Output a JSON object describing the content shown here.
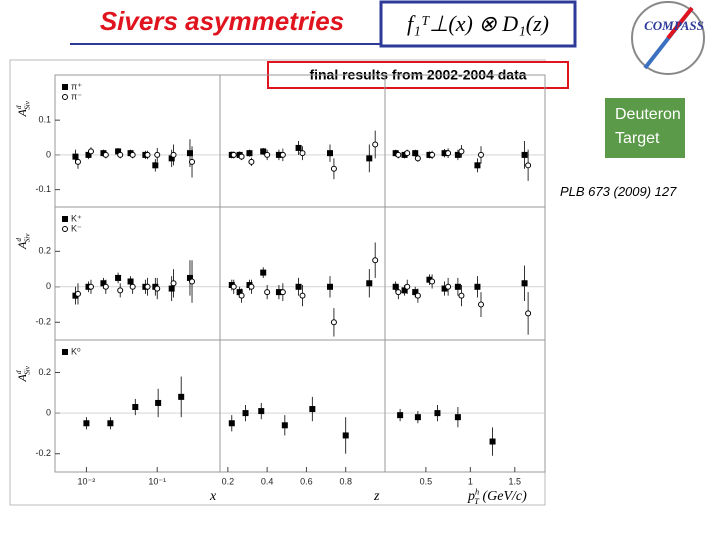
{
  "slide": {
    "title": "Sivers asymmetries",
    "formula": "f₁ᵀ⊥(x) ⊗ D₁(z)",
    "logo": "COMPASS",
    "subtitle": "final results from 2002-2004 data",
    "target": [
      "Deuteron",
      "Target"
    ],
    "reference": "PLB 673 (2009) 127"
  },
  "chart_data": [
    {
      "type": "scatter",
      "xlog": true,
      "xlim": [
        0.0036,
        0.77
      ],
      "ylim": [
        -0.15,
        0.23
      ],
      "yticks": [
        -0.1,
        0,
        0.1
      ],
      "ylabel": {
        "main": "A",
        "sup": "d",
        "sub": "Siv"
      },
      "series": [
        {
          "name": "π⁺",
          "marker": "square",
          "filled": true,
          "color": "#000000",
          "x": [
            0.007,
            0.0107,
            0.0174,
            0.028,
            0.042,
            0.068,
            0.094,
            0.16,
            0.29
          ],
          "values": [
            -0.005,
            0.0,
            0.005,
            0.01,
            0.005,
            0.0,
            -0.03,
            -0.01,
            0.005
          ],
          "errors": [
            0.02,
            0.012,
            0.01,
            0.01,
            0.01,
            0.012,
            0.018,
            0.025,
            0.04
          ]
        },
        {
          "name": "π⁻",
          "marker": "circle",
          "filled": false,
          "color": "#000000",
          "x": [
            0.0076,
            0.0116,
            0.0188,
            0.03,
            0.045,
            0.073,
            0.1,
            0.17,
            0.31
          ],
          "values": [
            -0.02,
            0.01,
            0.0,
            0.0,
            0.0,
            0.0,
            0.0,
            0.0,
            -0.02
          ],
          "errors": [
            0.02,
            0.012,
            0.01,
            0.01,
            0.01,
            0.012,
            0.02,
            0.03,
            0.045
          ]
        }
      ]
    },
    {
      "type": "scatter",
      "xlog": false,
      "xlim": [
        0.16,
        1.0
      ],
      "ylim": [
        -0.15,
        0.23
      ],
      "series": [
        {
          "marker": "square",
          "filled": true,
          "color": "#000000",
          "x": [
            0.22,
            0.26,
            0.31,
            0.38,
            0.46,
            0.56,
            0.72,
            0.92
          ],
          "values": [
            0.0,
            0.0,
            0.005,
            0.01,
            0.0,
            0.02,
            0.005,
            -0.01
          ],
          "errors": [
            0.01,
            0.01,
            0.01,
            0.01,
            0.015,
            0.02,
            0.025,
            0.04
          ]
        },
        {
          "marker": "circle",
          "filled": false,
          "color": "#000000",
          "x": [
            0.23,
            0.27,
            0.32,
            0.4,
            0.48,
            0.58,
            0.74,
            0.95
          ],
          "values": [
            0.0,
            -0.005,
            -0.02,
            0.0,
            0.0,
            0.005,
            -0.04,
            0.03
          ],
          "errors": [
            0.01,
            0.01,
            0.012,
            0.015,
            0.018,
            0.02,
            0.03,
            0.04
          ]
        }
      ]
    },
    {
      "type": "scatter",
      "xlog": false,
      "xlim": [
        0.04,
        1.84
      ],
      "ylim": [
        -0.15,
        0.23
      ],
      "series": [
        {
          "marker": "square",
          "filled": true,
          "color": "#000000",
          "x": [
            0.16,
            0.26,
            0.38,
            0.54,
            0.71,
            0.86,
            1.08,
            1.61
          ],
          "values": [
            0.005,
            0.0,
            0.005,
            0.0,
            0.005,
            0.0,
            -0.03,
            0.0
          ],
          "errors": [
            0.01,
            0.01,
            0.01,
            0.01,
            0.012,
            0.015,
            0.02,
            0.04
          ]
        },
        {
          "marker": "circle",
          "filled": false,
          "color": "#000000",
          "x": [
            0.19,
            0.29,
            0.41,
            0.57,
            0.75,
            0.9,
            1.12,
            1.65
          ],
          "values": [
            0.0,
            0.005,
            -0.01,
            0.0,
            0.005,
            0.01,
            0.0,
            -0.03
          ],
          "errors": [
            0.01,
            0.01,
            0.01,
            0.012,
            0.014,
            0.018,
            0.025,
            0.045
          ]
        }
      ]
    },
    {
      "type": "scatter",
      "xlog": true,
      "xlim": [
        0.0036,
        0.77
      ],
      "ylim": [
        -0.3,
        0.45
      ],
      "yticks": [
        -0.2,
        0,
        0.2
      ],
      "ylabel": {
        "main": "A",
        "sup": "d",
        "sub": "Siv"
      },
      "series": [
        {
          "name": "K⁺",
          "marker": "square",
          "filled": true,
          "color": "#000000",
          "x": [
            0.007,
            0.0107,
            0.0174,
            0.028,
            0.042,
            0.068,
            0.094,
            0.16,
            0.29
          ],
          "values": [
            -0.05,
            0.0,
            0.02,
            0.05,
            0.03,
            0.0,
            0.0,
            -0.01,
            0.05
          ],
          "errors": [
            0.05,
            0.03,
            0.03,
            0.03,
            0.03,
            0.04,
            0.05,
            0.07,
            0.1
          ]
        },
        {
          "name": "K⁻",
          "marker": "circle",
          "filled": false,
          "color": "#000000",
          "x": [
            0.0076,
            0.0116,
            0.0188,
            0.03,
            0.045,
            0.073,
            0.1,
            0.17,
            0.31
          ],
          "values": [
            -0.04,
            0.0,
            0.0,
            -0.02,
            0.0,
            0.0,
            -0.01,
            0.02,
            0.03
          ],
          "errors": [
            0.06,
            0.04,
            0.04,
            0.04,
            0.04,
            0.05,
            0.06,
            0.08,
            0.12
          ]
        }
      ]
    },
    {
      "type": "scatter",
      "xlog": false,
      "xlim": [
        0.16,
        1.0
      ],
      "ylim": [
        -0.3,
        0.45
      ],
      "series": [
        {
          "marker": "square",
          "filled": true,
          "color": "#000000",
          "x": [
            0.22,
            0.26,
            0.31,
            0.38,
            0.46,
            0.56,
            0.72,
            0.92
          ],
          "values": [
            0.01,
            -0.03,
            0.01,
            0.08,
            -0.03,
            0.0,
            0.0,
            0.02
          ],
          "errors": [
            0.03,
            0.03,
            0.03,
            0.03,
            0.04,
            0.05,
            0.06,
            0.08
          ]
        },
        {
          "marker": "circle",
          "filled": false,
          "color": "#000000",
          "x": [
            0.23,
            0.27,
            0.32,
            0.4,
            0.48,
            0.58,
            0.74,
            0.95
          ],
          "values": [
            0.0,
            -0.05,
            0.0,
            -0.03,
            -0.03,
            -0.05,
            -0.2,
            0.15
          ],
          "errors": [
            0.04,
            0.04,
            0.04,
            0.04,
            0.05,
            0.06,
            0.08,
            0.1
          ]
        }
      ]
    },
    {
      "type": "scatter",
      "xlog": false,
      "xlim": [
        0.04,
        1.84
      ],
      "ylim": [
        -0.3,
        0.45
      ],
      "series": [
        {
          "marker": "square",
          "filled": true,
          "color": "#000000",
          "x": [
            0.16,
            0.26,
            0.38,
            0.54,
            0.71,
            0.86,
            1.08,
            1.61
          ],
          "values": [
            0.0,
            -0.02,
            -0.03,
            0.04,
            -0.01,
            0.0,
            0.0,
            0.02
          ],
          "errors": [
            0.03,
            0.03,
            0.03,
            0.03,
            0.04,
            0.05,
            0.06,
            0.1
          ]
        },
        {
          "marker": "circle",
          "filled": false,
          "color": "#000000",
          "x": [
            0.19,
            0.29,
            0.41,
            0.57,
            0.75,
            0.9,
            1.12,
            1.65
          ],
          "values": [
            -0.03,
            0.0,
            -0.05,
            0.03,
            0.0,
            -0.05,
            -0.1,
            -0.15
          ],
          "errors": [
            0.04,
            0.04,
            0.04,
            0.04,
            0.05,
            0.06,
            0.07,
            0.12
          ]
        }
      ]
    },
    {
      "type": "scatter",
      "xlog": true,
      "xlim": [
        0.0036,
        0.77
      ],
      "ylim": [
        -0.29,
        0.36
      ],
      "yticks": [
        -0.2,
        0,
        0.2
      ],
      "xticks": [
        {
          "value": 0.01,
          "label": "10⁻²"
        },
        {
          "value": 0.1,
          "label": "10⁻¹"
        }
      ],
      "ylabel": {
        "main": "A",
        "sup": "d",
        "sub": "Siv"
      },
      "xlabel": {
        "main": "x"
      },
      "series": [
        {
          "name": "K⁰",
          "marker": "square",
          "filled": true,
          "color": "#000000",
          "x": [
            0.01,
            0.0218,
            0.049,
            0.103,
            0.218
          ],
          "values": [
            -0.05,
            -0.05,
            0.03,
            0.05,
            0.08
          ],
          "errors": [
            0.03,
            0.03,
            0.04,
            0.07,
            0.1
          ]
        }
      ]
    },
    {
      "type": "scatter",
      "xlog": false,
      "xlim": [
        0.16,
        1.0
      ],
      "ylim": [
        -0.29,
        0.36
      ],
      "xticks": [
        0.2,
        0.4,
        0.6,
        0.8
      ],
      "xlabel": {
        "main": "z"
      },
      "series": [
        {
          "marker": "square",
          "filled": true,
          "color": "#000000",
          "x": [
            0.22,
            0.29,
            0.37,
            0.49,
            0.63,
            0.8
          ],
          "values": [
            -0.05,
            0.0,
            0.01,
            -0.06,
            0.02,
            -0.11
          ],
          "errors": [
            0.04,
            0.04,
            0.04,
            0.05,
            0.06,
            0.09
          ]
        }
      ]
    },
    {
      "type": "scatter",
      "xlog": false,
      "xlim": [
        0.04,
        1.84
      ],
      "ylim": [
        -0.29,
        0.36
      ],
      "xticks": [
        0.5,
        1,
        1.5
      ],
      "xlabel": {
        "main": "p",
        "sup": "h",
        "sub": "T",
        "rest": " (GeV/c)"
      },
      "series": [
        {
          "marker": "square",
          "filled": true,
          "color": "#000000",
          "x": [
            0.21,
            0.41,
            0.63,
            0.86,
            1.25
          ],
          "values": [
            -0.01,
            -0.02,
            0.0,
            -0.02,
            -0.14
          ],
          "errors": [
            0.03,
            0.03,
            0.04,
            0.05,
            0.07
          ]
        }
      ]
    }
  ]
}
